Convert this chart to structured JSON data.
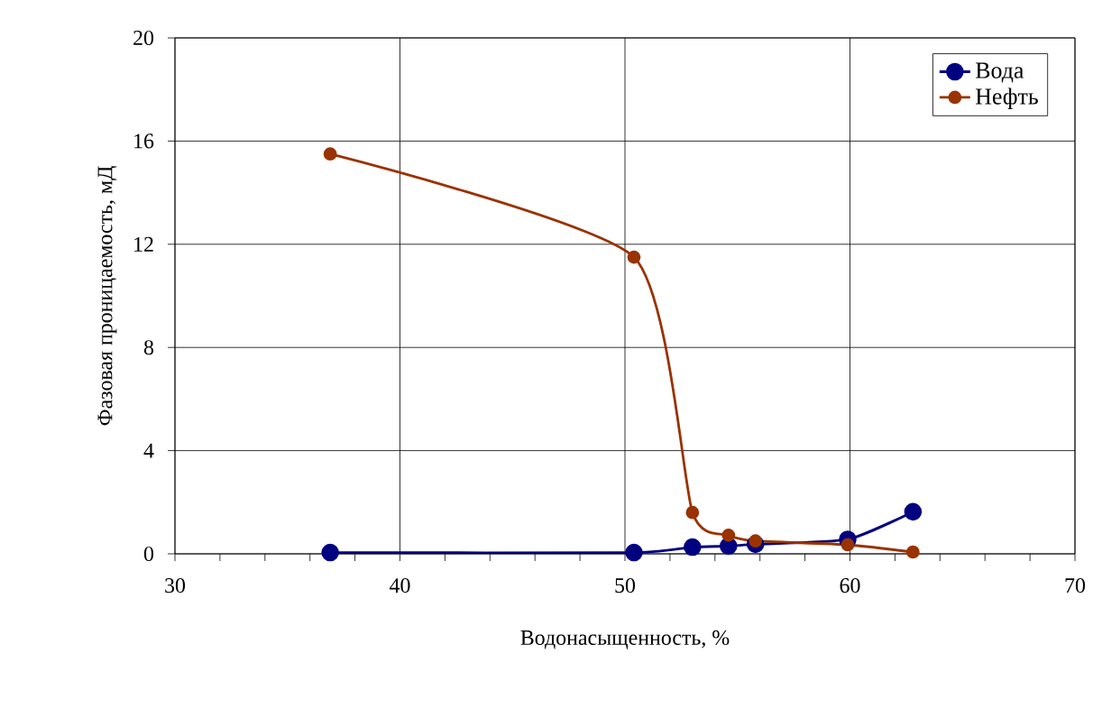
{
  "chart_data": {
    "type": "line",
    "xlabel": "Водонасыщенность, %",
    "ylabel": "Фазовая проницаемость, мД",
    "xlim": [
      30,
      70
    ],
    "xticks": [
      30,
      40,
      50,
      60,
      70
    ],
    "ylim": [
      0,
      20
    ],
    "yticks": [
      0,
      4,
      8,
      12,
      16,
      20
    ],
    "grid": true,
    "legend": "top right",
    "marker": "circle",
    "line_style": "solid",
    "series": [
      {
        "name": "Вода",
        "color": "#000080",
        "x": [
          36.9,
          50.4,
          53.0,
          54.6,
          55.8,
          59.9,
          62.8
        ],
        "values": [
          0.05,
          0.05,
          0.26,
          0.3,
          0.37,
          0.56,
          1.63
        ]
      },
      {
        "name": "Нефть",
        "color": "#993300",
        "x": [
          36.9,
          50.4,
          53.0,
          54.6,
          55.8,
          59.9,
          62.8
        ],
        "values": [
          15.5,
          11.5,
          1.6,
          0.72,
          0.5,
          0.35,
          0.07
        ]
      }
    ]
  }
}
